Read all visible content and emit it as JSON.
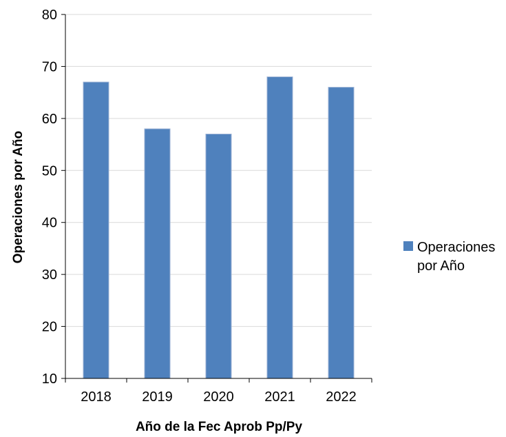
{
  "chart_data": {
    "type": "bar",
    "title": "",
    "xlabel": "Año de la Fec Aprob Pp/Py",
    "ylabel": "Operaciones por Año",
    "categories": [
      "2018",
      "2019",
      "2020",
      "2021",
      "2022"
    ],
    "series": [
      {
        "name": "Operaciones por Año",
        "values": [
          67,
          58,
          57,
          68,
          66
        ],
        "color": "#4f81bd"
      }
    ],
    "ylim": [
      10,
      80
    ],
    "yticks": [
      10,
      20,
      30,
      40,
      50,
      60,
      70,
      80
    ],
    "grid": true,
    "legend": "right"
  }
}
